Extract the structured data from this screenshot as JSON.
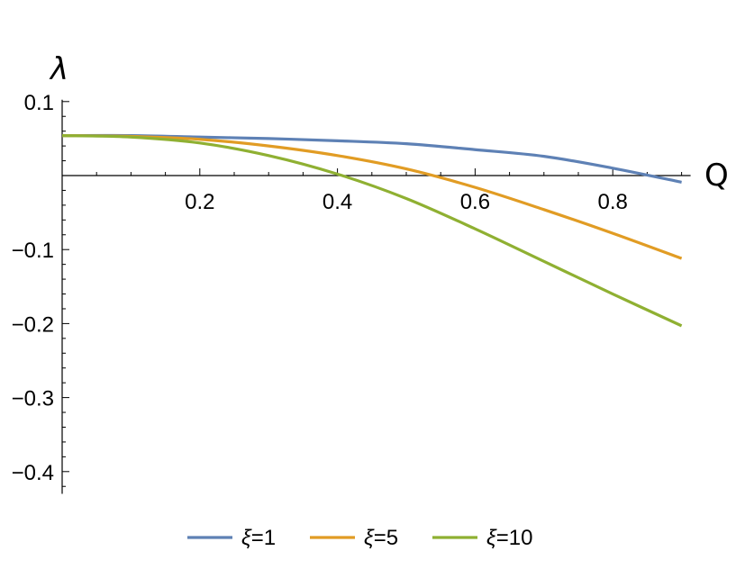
{
  "chart_data": {
    "type": "line",
    "xlabel": "Q",
    "ylabel": "λ",
    "xlim": [
      0,
      0.9
    ],
    "ylim": [
      -0.43,
      0.1
    ],
    "x_ticks": [
      0.2,
      0.4,
      0.6,
      0.8
    ],
    "x_tick_labels": [
      "0.2",
      "0.4",
      "0.6",
      "0.8"
    ],
    "y_ticks": [
      0.1,
      -0.1,
      -0.2,
      -0.3,
      -0.4
    ],
    "y_tick_labels": [
      "0.1",
      "−0.1",
      "−0.2",
      "−0.3",
      "−0.4"
    ],
    "grid": false,
    "legend_position": "bottom",
    "series": [
      {
        "name": "ξ=1",
        "color": "#5E81B5",
        "x": [
          0,
          0.1,
          0.2,
          0.3,
          0.4,
          0.5,
          0.6,
          0.7,
          0.8,
          0.9
        ],
        "y": [
          0.054,
          0.054,
          0.052,
          0.05,
          0.047,
          0.043,
          0.035,
          0.026,
          0.01,
          -0.009
        ]
      },
      {
        "name": "ξ=5",
        "color": "#E19C24",
        "x": [
          0,
          0.1,
          0.2,
          0.3,
          0.4,
          0.5,
          0.6,
          0.7,
          0.8,
          0.9
        ],
        "y": [
          0.054,
          0.053,
          0.049,
          0.04,
          0.027,
          0.009,
          -0.016,
          -0.046,
          -0.078,
          -0.112
        ]
      },
      {
        "name": "ξ=10",
        "color": "#8FB032",
        "x": [
          0,
          0.1,
          0.2,
          0.3,
          0.4,
          0.5,
          0.6,
          0.7,
          0.8,
          0.9
        ],
        "y": [
          0.054,
          0.052,
          0.044,
          0.027,
          0.002,
          -0.031,
          -0.072,
          -0.116,
          -0.16,
          -0.203
        ]
      }
    ]
  }
}
